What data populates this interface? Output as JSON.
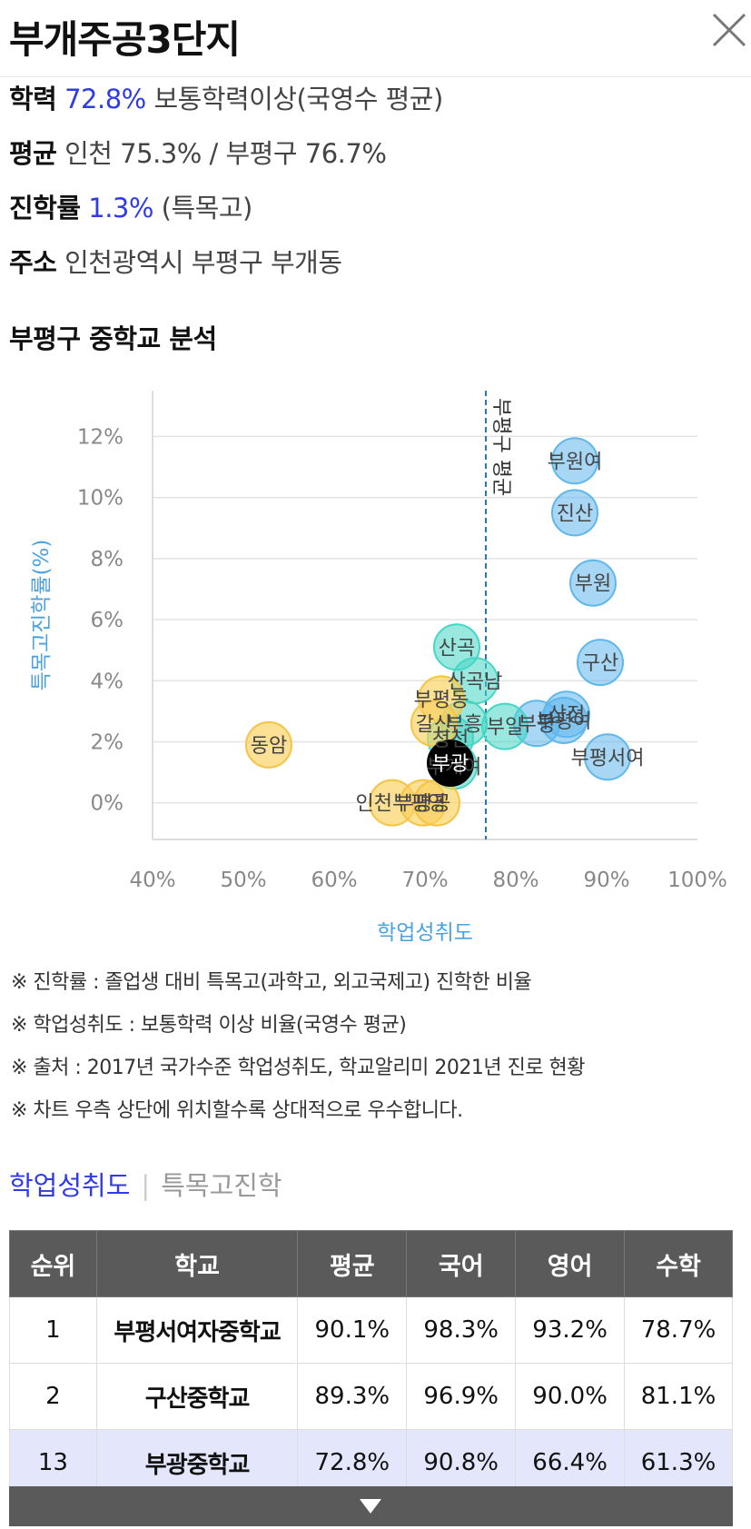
{
  "header": {
    "title": "부개주공3단지"
  },
  "info": {
    "edu_label": "학력",
    "edu_value": "72.8%",
    "edu_desc": "보통학력이상(국영수 평균)",
    "avg_label": "평균",
    "avg_value": "인천 75.3% / 부평구 76.7%",
    "rate_label": "진학률",
    "rate_value": "1.3%",
    "rate_desc": "(특목고)",
    "addr_label": "주소",
    "addr_value": "인천광역시 부평구 부개동"
  },
  "section": {
    "title": "부평구 중학교 분석"
  },
  "chart_data": {
    "type": "scatter",
    "xlabel": "학업성취도",
    "ylabel": "특목고진학률(%)",
    "xlim": [
      40,
      100
    ],
    "ylim": [
      -1.2,
      13.5
    ],
    "x_ticks": [
      "40%",
      "50%",
      "60%",
      "70%",
      "80%",
      "90%",
      "100%"
    ],
    "x_tick_values": [
      40,
      50,
      60,
      70,
      80,
      90,
      100
    ],
    "y_ticks": [
      "0%",
      "2%",
      "4%",
      "6%",
      "8%",
      "10%",
      "12%"
    ],
    "y_tick_values": [
      0,
      2,
      4,
      6,
      8,
      10,
      12
    ],
    "grid": true,
    "reference_line": {
      "x": 76.7,
      "label": "부평구 평균"
    },
    "colors": {
      "blue": "#5fb7ec",
      "green": "#45d6c4",
      "yellow": "#fbd05a",
      "black": "#000000",
      "axis_label": "#4aa3df"
    },
    "points": [
      {
        "label": "부원여",
        "x": 86.5,
        "y": 11.2,
        "group": "blue"
      },
      {
        "label": "진산",
        "x": 86.5,
        "y": 9.5,
        "group": "blue"
      },
      {
        "label": "부원",
        "x": 88.5,
        "y": 7.2,
        "group": "blue"
      },
      {
        "label": "구산",
        "x": 89.3,
        "y": 4.6,
        "group": "blue"
      },
      {
        "label": "부평서여",
        "x": 90.1,
        "y": 1.5,
        "group": "blue"
      },
      {
        "label": "부평",
        "x": 82.3,
        "y": 2.6,
        "group": "blue"
      },
      {
        "label": "부평여",
        "x": 85.3,
        "y": 2.7,
        "group": "blue"
      },
      {
        "label": "상정",
        "x": 85.6,
        "y": 2.9,
        "group": "blue"
      },
      {
        "label": "산곡",
        "x": 73.5,
        "y": 5.1,
        "group": "green"
      },
      {
        "label": "산곡남",
        "x": 75.5,
        "y": 4.0,
        "group": "green"
      },
      {
        "label": "부흥",
        "x": 74.3,
        "y": 2.6,
        "group": "green"
      },
      {
        "label": "부일",
        "x": 78.8,
        "y": 2.5,
        "group": "green"
      },
      {
        "label": "부개여",
        "x": 73.2,
        "y": 1.2,
        "group": "green"
      },
      {
        "label": "청천",
        "x": 72.8,
        "y": 2.1,
        "group": "green"
      },
      {
        "label": "동암",
        "x": 52.8,
        "y": 1.9,
        "group": "yellow"
      },
      {
        "label": "부평동",
        "x": 71.8,
        "y": 3.4,
        "group": "yellow"
      },
      {
        "label": "갈산",
        "x": 71.0,
        "y": 2.6,
        "group": "yellow"
      },
      {
        "label": "인천부평",
        "x": 66.4,
        "y": 0.0,
        "group": "yellow"
      },
      {
        "label": "부평공",
        "x": 69.8,
        "y": 0.0,
        "group": "yellow"
      },
      {
        "label": "영",
        "x": 71.3,
        "y": 0.0,
        "group": "yellow"
      },
      {
        "label": "부광",
        "x": 72.8,
        "y": 1.3,
        "group": "black"
      }
    ]
  },
  "notes": [
    "※ 진학률 : 졸업생 대비 특목고(과학고, 외고국제고) 진학한 비율",
    "※ 학업성취도 : 보통학력 이상 비율(국영수 평균)",
    "※ 출처 : 2017년 국가수준 학업성취도, 학교알리미 2021년 진로 현황",
    "※ 차트 우측 상단에 위치할수록 상대적으로 우수합니다."
  ],
  "tabs": {
    "active": "학업성취도",
    "separator": "|",
    "other": "특목고진학"
  },
  "table": {
    "headers": [
      "순위",
      "학교",
      "평균",
      "국어",
      "영어",
      "수학"
    ],
    "rows": [
      [
        "1",
        "부평서여자중학교",
        "90.1%",
        "98.3%",
        "93.2%",
        "78.7%"
      ],
      [
        "2",
        "구산중학교",
        "89.3%",
        "96.9%",
        "90.0%",
        "81.1%"
      ],
      [
        "13",
        "부광중학교",
        "72.8%",
        "90.8%",
        "66.4%",
        "61.3%"
      ]
    ]
  },
  "icons": {
    "close": "close-icon",
    "expand": "chevron-down-icon"
  }
}
